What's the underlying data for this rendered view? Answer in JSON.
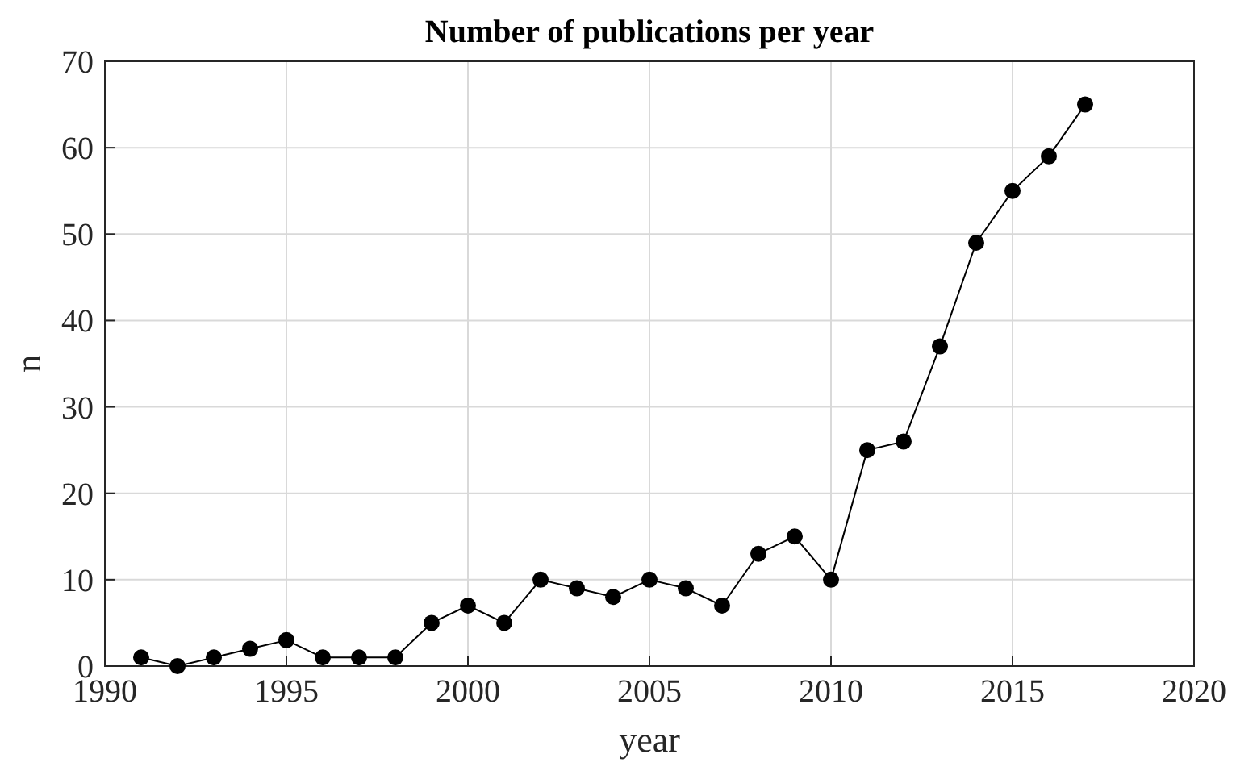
{
  "chart_data": {
    "type": "line",
    "title": "Number of publications per year",
    "xlabel": "year",
    "ylabel": "n",
    "x": [
      1991,
      1992,
      1993,
      1994,
      1995,
      1996,
      1997,
      1998,
      1999,
      2000,
      2001,
      2002,
      2003,
      2004,
      2005,
      2006,
      2007,
      2008,
      2009,
      2010,
      2011,
      2012,
      2013,
      2014,
      2015,
      2016,
      2017
    ],
    "series": [
      {
        "color": "#000000",
        "values": [
          1,
          0,
          1,
          2,
          3,
          1,
          1,
          1,
          5,
          7,
          5,
          10,
          9,
          8,
          10,
          9,
          7,
          13,
          15,
          10,
          25,
          26,
          37,
          49,
          55,
          59,
          65
        ]
      }
    ],
    "xlim": [
      1990,
      2020
    ],
    "xticks": [
      1990,
      1995,
      2000,
      2005,
      2010,
      2015,
      2020
    ],
    "ylim": [
      0,
      70
    ],
    "yticks": [
      0,
      10,
      20,
      30,
      40,
      50,
      60,
      70
    ],
    "grid": true,
    "marker": "circle",
    "line_style": "solid"
  }
}
